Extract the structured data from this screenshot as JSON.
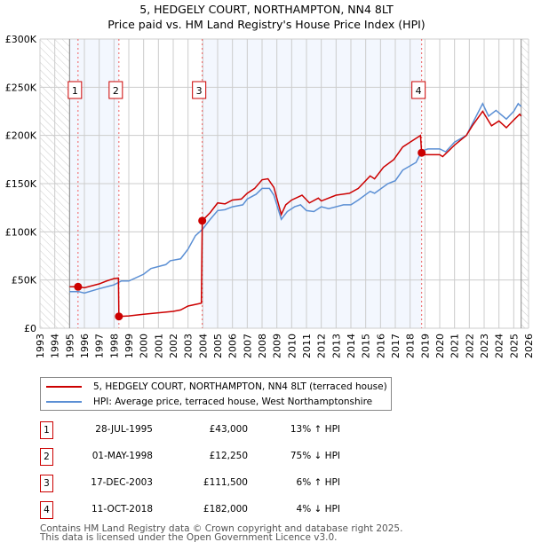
{
  "chart_data": {
    "type": "line",
    "title": "5, HEDGELY COURT, NORTHAMPTON, NN4 8LT",
    "subtitle": "Price paid vs. HM Land Registry's House Price Index (HPI)",
    "xlim": [
      1993,
      2026
    ],
    "ylim": [
      0,
      300000
    ],
    "x_ticks": [
      "1993",
      "1994",
      "1995",
      "1996",
      "1997",
      "1998",
      "1999",
      "2000",
      "2001",
      "2002",
      "2003",
      "2004",
      "2005",
      "2006",
      "2007",
      "2008",
      "2009",
      "2010",
      "2011",
      "2012",
      "2013",
      "2014",
      "2015",
      "2016",
      "2017",
      "2018",
      "2019",
      "2020",
      "2021",
      "2022",
      "2023",
      "2024",
      "2025",
      "2026"
    ],
    "y_ticks": [
      {
        "v": 0,
        "label": "£0"
      },
      {
        "v": 50000,
        "label": "£50K"
      },
      {
        "v": 100000,
        "label": "£100K"
      },
      {
        "v": 150000,
        "label": "£150K"
      },
      {
        "v": 200000,
        "label": "£200K"
      },
      {
        "v": 250000,
        "label": "£250K"
      },
      {
        "v": 300000,
        "label": "£300K"
      }
    ],
    "grid": true,
    "hatched_ranges": [
      [
        1993,
        1995
      ],
      [
        2025.5,
        2026
      ]
    ],
    "shaded_ranges": [
      [
        1995,
        1998.33
      ],
      [
        2003.96,
        2018.78
      ]
    ],
    "series": [
      {
        "name": "5, HEDGELY COURT, NORTHAMPTON, NN4 8LT (terraced house)",
        "color": "#cc0000",
        "points": [
          [
            1995,
            43
          ],
          [
            1995.57,
            43
          ],
          [
            1996,
            42
          ],
          [
            1997,
            46
          ],
          [
            1997.5,
            49
          ],
          [
            1998,
            51.5
          ],
          [
            1998.3,
            52
          ],
          [
            1998.33,
            12.25
          ],
          [
            1999,
            12.8
          ],
          [
            2000,
            14.5
          ],
          [
            2001,
            16
          ],
          [
            2002,
            17.5
          ],
          [
            2002.5,
            19
          ],
          [
            2003,
            23
          ],
          [
            2003.9,
            26
          ],
          [
            2003.96,
            111.5
          ],
          [
            2004.5,
            120
          ],
          [
            2005,
            130
          ],
          [
            2005.5,
            129
          ],
          [
            2006,
            133
          ],
          [
            2006.6,
            134
          ],
          [
            2007,
            140
          ],
          [
            2007.5,
            145
          ],
          [
            2008,
            154
          ],
          [
            2008.4,
            155
          ],
          [
            2008.8,
            146
          ],
          [
            2009.3,
            118
          ],
          [
            2009.6,
            128
          ],
          [
            2010,
            133
          ],
          [
            2010.7,
            138
          ],
          [
            2011.2,
            130
          ],
          [
            2011.8,
            135
          ],
          [
            2012,
            132
          ],
          [
            2013,
            138
          ],
          [
            2013.9,
            140
          ],
          [
            2014.5,
            145
          ],
          [
            2015.3,
            158
          ],
          [
            2015.6,
            155
          ],
          [
            2016.2,
            167
          ],
          [
            2016.9,
            175
          ],
          [
            2017.5,
            188
          ],
          [
            2018,
            193
          ],
          [
            2018.5,
            198
          ],
          [
            2018.7,
            200
          ],
          [
            2018.78,
            182
          ],
          [
            2019,
            180
          ],
          [
            2020,
            180
          ],
          [
            2020.2,
            178
          ],
          [
            2021,
            190
          ],
          [
            2021.8,
            200
          ],
          [
            2022.2,
            210
          ],
          [
            2022.9,
            225
          ],
          [
            2023.5,
            210
          ],
          [
            2024,
            215
          ],
          [
            2024.5,
            208
          ],
          [
            2025,
            216
          ],
          [
            2025.4,
            222
          ],
          [
            2025.5,
            220
          ]
        ]
      },
      {
        "name": "HPI: Average price, terraced house, West Northamptonshire",
        "color": "#5b8fd4",
        "points": [
          [
            1995,
            38
          ],
          [
            1995.6,
            38
          ],
          [
            1996,
            36.5
          ],
          [
            1997,
            41
          ],
          [
            1998,
            45
          ],
          [
            1998.5,
            49
          ],
          [
            1999,
            49
          ],
          [
            2000,
            56
          ],
          [
            2000.5,
            62
          ],
          [
            2001.5,
            66
          ],
          [
            2001.8,
            70
          ],
          [
            2002.5,
            72
          ],
          [
            2003,
            82
          ],
          [
            2003.5,
            96
          ],
          [
            2004,
            103
          ],
          [
            2004.5,
            113
          ],
          [
            2005,
            122
          ],
          [
            2005.5,
            123
          ],
          [
            2006,
            126
          ],
          [
            2006.7,
            128
          ],
          [
            2007,
            134
          ],
          [
            2007.6,
            139
          ],
          [
            2008,
            145
          ],
          [
            2008.5,
            145
          ],
          [
            2008.8,
            138
          ],
          [
            2009.3,
            113
          ],
          [
            2009.7,
            121
          ],
          [
            2010.2,
            126
          ],
          [
            2010.6,
            128
          ],
          [
            2011,
            122
          ],
          [
            2011.5,
            121
          ],
          [
            2012,
            126
          ],
          [
            2012.5,
            124
          ],
          [
            2013.5,
            128
          ],
          [
            2014,
            128
          ],
          [
            2014.5,
            133
          ],
          [
            2015.3,
            142
          ],
          [
            2015.6,
            140
          ],
          [
            2016.5,
            150
          ],
          [
            2017,
            153
          ],
          [
            2017.5,
            164
          ],
          [
            2018.4,
            172
          ],
          [
            2018.8,
            184
          ],
          [
            2019.2,
            186
          ],
          [
            2020,
            186
          ],
          [
            2020.4,
            183
          ],
          [
            2021,
            193
          ],
          [
            2021.8,
            200
          ],
          [
            2022.9,
            233
          ],
          [
            2023.3,
            220
          ],
          [
            2023.8,
            226
          ],
          [
            2024.5,
            217
          ],
          [
            2025,
            225
          ],
          [
            2025.3,
            233
          ],
          [
            2025.5,
            230
          ]
        ]
      }
    ],
    "sales": [
      {
        "n": "1",
        "x": 1995.57,
        "price": 43000,
        "date": "28-JUL-1995",
        "price_label": "£43,000",
        "hpi": "13% ↑ HPI"
      },
      {
        "n": "2",
        "x": 1998.33,
        "price": 12250,
        "date": "01-MAY-1998",
        "price_label": "£12,250",
        "hpi": "75% ↓ HPI"
      },
      {
        "n": "3",
        "x": 2003.96,
        "price": 111500,
        "date": "17-DEC-2003",
        "price_label": "£111,500",
        "hpi": "6% ↑ HPI"
      },
      {
        "n": "4",
        "x": 2018.78,
        "price": 182000,
        "date": "11-OCT-2018",
        "price_label": "£182,000",
        "hpi": "4% ↓ HPI"
      }
    ]
  },
  "legend": {
    "red": "5, HEDGELY COURT, NORTHAMPTON, NN4 8LT (terraced house)",
    "blue": "HPI: Average price, terraced house, West Northamptonshire"
  },
  "footer": [
    "Contains HM Land Registry data © Crown copyright and database right 2025.",
    "This data is licensed under the Open Government Licence v3.0."
  ]
}
